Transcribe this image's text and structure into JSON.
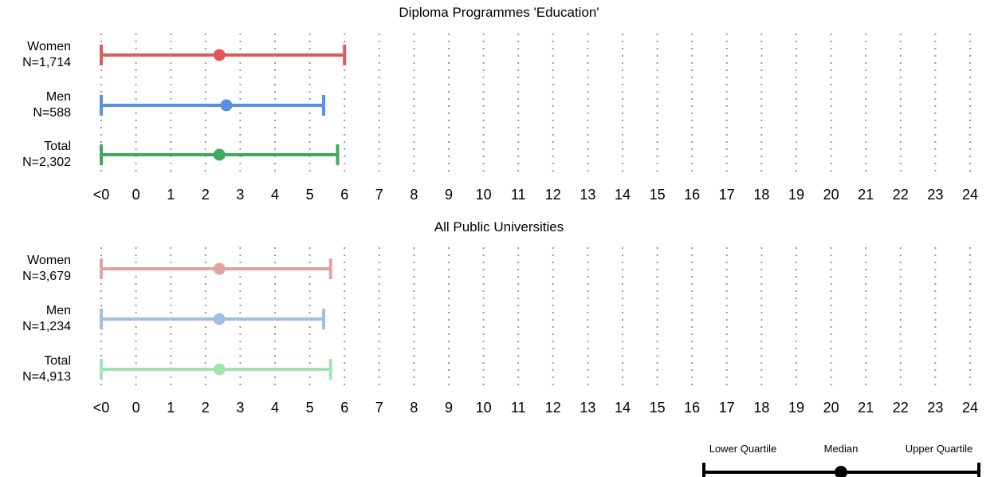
{
  "chart_data": [
    {
      "type": "range",
      "title": "Diploma Programmes 'Education'",
      "ticks": [
        "<0",
        "0",
        "1",
        "2",
        "3",
        "4",
        "5",
        "6",
        "7",
        "8",
        "9",
        "10",
        "11",
        "12",
        "13",
        "14",
        "15",
        "16",
        "17",
        "18",
        "19",
        "20",
        "21",
        "22",
        "23",
        "24"
      ],
      "xlim": [
        -1,
        24
      ],
      "grid": true,
      "rows": [
        {
          "label": "Women",
          "n": "N=1,714",
          "lower": -1,
          "median": 2.4,
          "upper": 6.0,
          "color": "#E05A5A"
        },
        {
          "label": "Men",
          "n": "N=588",
          "lower": -1,
          "median": 2.6,
          "upper": 5.4,
          "color": "#5B8FE0"
        },
        {
          "label": "Total",
          "n": "N=2,302",
          "lower": -1,
          "median": 2.4,
          "upper": 5.8,
          "color": "#3DAA5C"
        }
      ]
    },
    {
      "type": "range",
      "title": "All Public Universities",
      "ticks": [
        "<0",
        "0",
        "1",
        "2",
        "3",
        "4",
        "5",
        "6",
        "7",
        "8",
        "9",
        "10",
        "11",
        "12",
        "13",
        "14",
        "15",
        "16",
        "17",
        "18",
        "19",
        "20",
        "21",
        "22",
        "23",
        "24"
      ],
      "xlim": [
        -1,
        24
      ],
      "grid": true,
      "rows": [
        {
          "label": "Women",
          "n": "N=3,679",
          "lower": -1,
          "median": 2.4,
          "upper": 5.6,
          "color": "#E3A2A2"
        },
        {
          "label": "Men",
          "n": "N=1,234",
          "lower": -1,
          "median": 2.4,
          "upper": 5.4,
          "color": "#A3BDE3"
        },
        {
          "label": "Total",
          "n": "N=4,913",
          "lower": -1,
          "median": 2.4,
          "upper": 5.6,
          "color": "#A3E3B3"
        }
      ]
    }
  ],
  "legend": {
    "lower_label": "Lower Quartile",
    "median_label": "Median",
    "upper_label": "Upper Quartile",
    "color": "#000000"
  }
}
